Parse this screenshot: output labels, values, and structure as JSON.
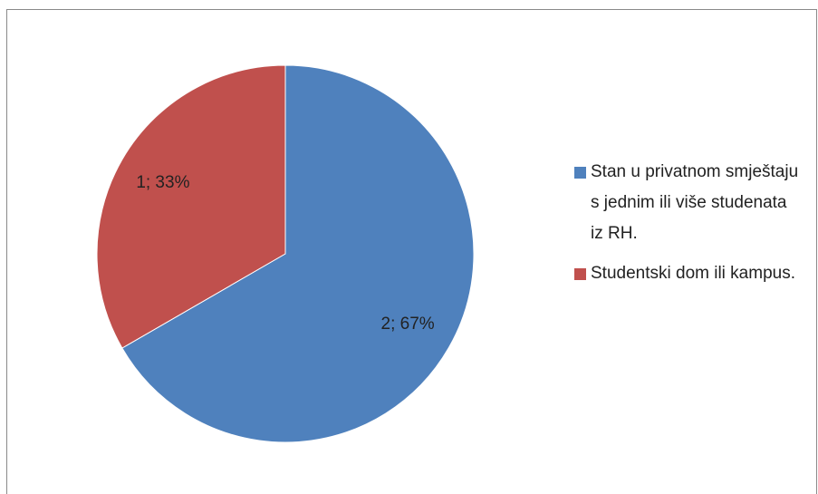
{
  "chart_data": {
    "type": "pie",
    "categories": [
      "Stan u privatnom smještaju s jednim ili više studenata iz RH.",
      "Studentski dom ili kampus."
    ],
    "values": [
      2,
      1
    ],
    "value_labels": [
      "2; 67%",
      "1; 33%"
    ],
    "colors": [
      "#4f81bd",
      "#c0504d"
    ],
    "legend": "right"
  }
}
